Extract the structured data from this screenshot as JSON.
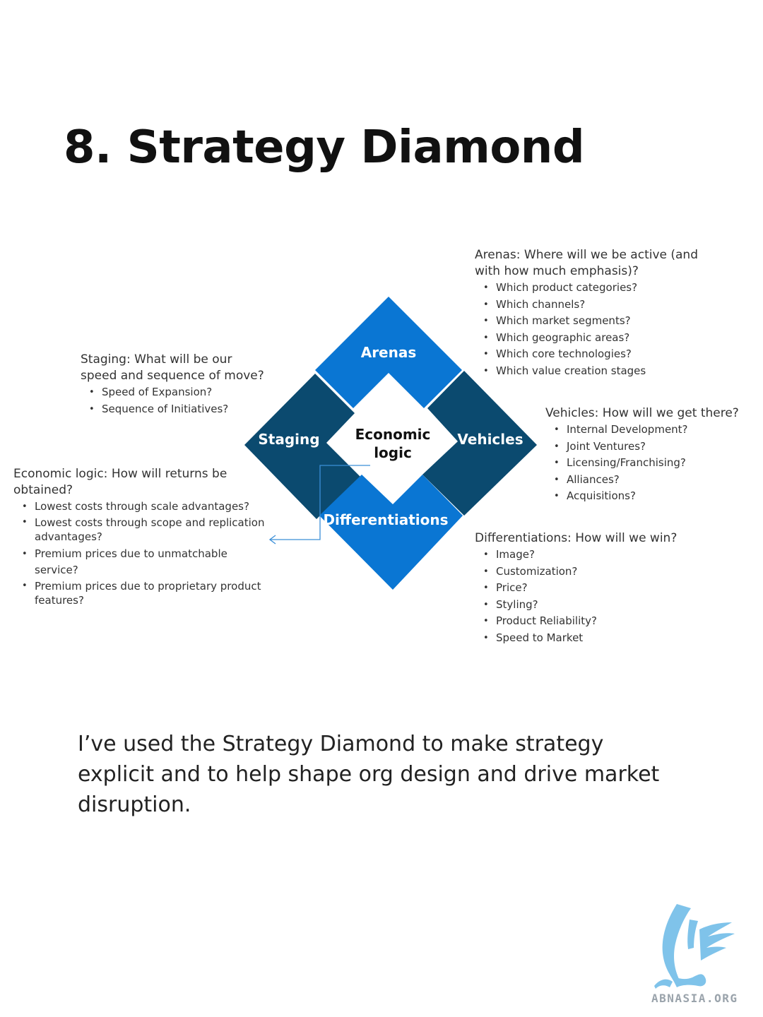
{
  "title": "8. Strategy Diamond",
  "diagram": {
    "nodes": {
      "arenas": "Arenas",
      "staging": "Staging",
      "vehicles": "Vehicles",
      "differentiations": "Differentiations",
      "economic_logic_line1": "Economic",
      "economic_logic_line2": "logic"
    },
    "colors": {
      "arenas": "#0a76d3",
      "staging": "#0b4a6f",
      "vehicles": "#0b4a6f",
      "differentiations": "#0a76d3",
      "connector": "#3b8fd8"
    }
  },
  "arenas_block": {
    "heading_line1": "Arenas: Where will we be active (and",
    "heading_line2": "with how much emphasis)?",
    "items": [
      "Which product categories?",
      "Which channels?",
      "Which market segments?",
      "Which geographic areas?",
      "Which core technologies?",
      "Which value creation stages"
    ]
  },
  "staging_block": {
    "heading_line1": "Staging: What will be our",
    "heading_line2": "speed and sequence of move?",
    "items": [
      "Speed of Expansion?",
      "Sequence of Initiatives?"
    ]
  },
  "vehicles_block": {
    "heading": "Vehicles: How will we get there?",
    "items": [
      "Internal Development?",
      "Joint Ventures?",
      "Licensing/Franchising?",
      "Alliances?",
      "Acquisitions?"
    ]
  },
  "economic_block": {
    "heading_line1": "Economic logic: How will returns be",
    "heading_line2": "obtained?",
    "items": [
      "Lowest costs through scale advantages?",
      "Lowest costs through scope and replication advantages?",
      "Premium prices due to unmatchable service?",
      "Premium prices due to proprietary product features?"
    ]
  },
  "differentiations_block": {
    "heading": "Differentiations: How will we win?",
    "items": [
      "Image?",
      "Customization?",
      "Price?",
      "Styling?",
      "Product Reliability?",
      "Speed to Market"
    ]
  },
  "caption": "I’ve used the Strategy Diamond to make strategy explicit and to help shape org design and drive market disruption.",
  "logo": {
    "text": "ABNASIA.ORG",
    "color": "#7fc3ea"
  }
}
